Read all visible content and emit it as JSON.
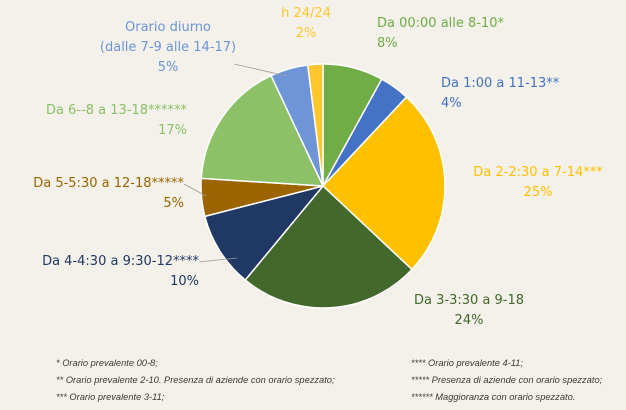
{
  "chart_data": {
    "type": "pie",
    "title": "",
    "slices": [
      {
        "label_lines": [
          "Da 00:00 alle 8-10*"
        ],
        "value_text": "8%",
        "value": 8,
        "color": "#70ad47"
      },
      {
        "label_lines": [
          "Da 1:00 a 11-13**"
        ],
        "value_text": "4%",
        "value": 4,
        "color": "#4472c4"
      },
      {
        "label_lines": [
          "Da 2-2:30 a 7-14***"
        ],
        "value_text": "25%",
        "value": 25,
        "color": "#ffc000"
      },
      {
        "label_lines": [
          "Da 3-3:30 a 9-18"
        ],
        "value_text": "24%",
        "value": 24,
        "color": "#43682b"
      },
      {
        "label_lines": [
          "Da 4-4:30 a 9:30-12****"
        ],
        "value_text": "10%",
        "value": 10,
        "color": "#203864"
      },
      {
        "label_lines": [
          "Da 5-5:30 a 12-18*****"
        ],
        "value_text": "5%",
        "value": 5,
        "color": "#9c6500"
      },
      {
        "label_lines": [
          "Da 6--8 a 13-18******"
        ],
        "value_text": "17%",
        "value": 17,
        "color": "#8cc168"
      },
      {
        "label_lines": [
          "Orario diurno",
          "(dalle 7-9 alle 14-17)"
        ],
        "value_text": "5%",
        "value": 5,
        "color": "#6d95d8"
      },
      {
        "label_lines": [
          "h 24/24"
        ],
        "value_text": "2%",
        "value": 2,
        "color": "#ffc72c"
      }
    ]
  },
  "label_colors": [
    "#70ad47",
    "#4472c4",
    "#ffc000",
    "#43682b",
    "#203864",
    "#9c6500",
    "#8cc168",
    "#6d95d8",
    "#ffc72c"
  ],
  "footnotes": {
    "left": [
      "* Orario prevalente 00-8;",
      "** Orario prevalente 2-10. Presenza di aziende con orario spezzato;",
      "*** Orario prevalente 3-11;"
    ],
    "right": [
      "**** Orario prevalente 4-11;",
      "***** Presenza di aziende con orario spezzato;",
      "****** Maggioranza con orario spezzato."
    ]
  }
}
